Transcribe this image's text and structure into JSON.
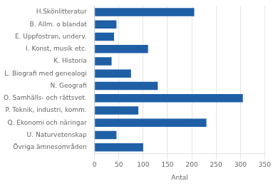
{
  "chart_data": {
    "type": "bar",
    "orientation": "horizontal",
    "categories": [
      "H.Skönlitteratur",
      "B. Allm. o blandat",
      "E. Uppfostran, underv.",
      "I. Konst, musik etc.",
      "K. Historia",
      "L. Biografi med genealogi",
      "N. Geografi",
      "O. Samhälls- och rättsvet.",
      "P. Teknik, industri, komm.",
      "Q. Ekonomi och näringar",
      "U. Naturvetenskap",
      "Övriga ämnesområden"
    ],
    "values": [
      205,
      45,
      40,
      110,
      35,
      75,
      130,
      305,
      90,
      230,
      45,
      100
    ],
    "color": "#1F5FA6",
    "xlabel": "Antal",
    "xlim": [
      0,
      350
    ],
    "xticks": [
      0,
      50,
      100,
      150,
      200,
      250,
      300,
      350
    ],
    "grid": true
  }
}
